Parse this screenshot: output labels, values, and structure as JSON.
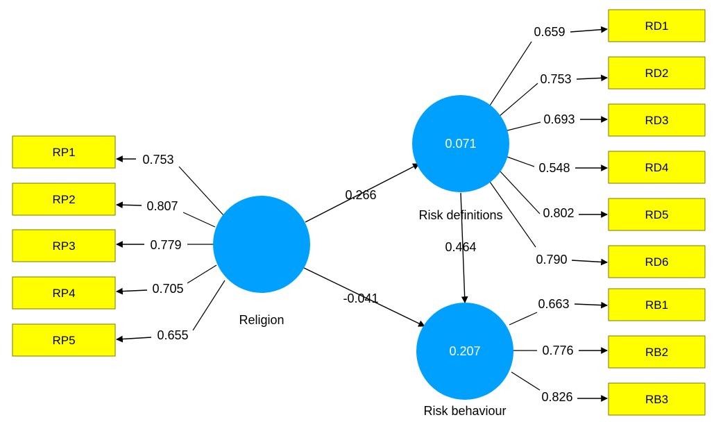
{
  "colors": {
    "latent": "#00A0FF",
    "indicator_fill": "#FFFF00",
    "indicator_border": "#7a7a00",
    "line": "#000000"
  },
  "latents": [
    {
      "id": "religion",
      "label": "Religion",
      "r2": ""
    },
    {
      "id": "risk_def",
      "label": "Risk definitions",
      "r2": "0.071"
    },
    {
      "id": "risk_beh",
      "label": "Risk behaviour",
      "r2": "0.207"
    }
  ],
  "indicators": [
    {
      "id": "RP1",
      "label": "RP1",
      "latent": "religion",
      "weight": "0.753"
    },
    {
      "id": "RP2",
      "label": "RP2",
      "latent": "religion",
      "weight": "0.807"
    },
    {
      "id": "RP3",
      "label": "RP3",
      "latent": "religion",
      "weight": "0.779"
    },
    {
      "id": "RP4",
      "label": "RP4",
      "latent": "religion",
      "weight": "0.705"
    },
    {
      "id": "RP5",
      "label": "RP5",
      "latent": "religion",
      "weight": "0.655"
    },
    {
      "id": "RD1",
      "label": "RD1",
      "latent": "risk_def",
      "weight": "0.659"
    },
    {
      "id": "RD2",
      "label": "RD2",
      "latent": "risk_def",
      "weight": "0.753"
    },
    {
      "id": "RD3",
      "label": "RD3",
      "latent": "risk_def",
      "weight": "0.693"
    },
    {
      "id": "RD4",
      "label": "RD4",
      "latent": "risk_def",
      "weight": "0.548"
    },
    {
      "id": "RD5",
      "label": "RD5",
      "latent": "risk_def",
      "weight": "0.802"
    },
    {
      "id": "RD6",
      "label": "RD6",
      "latent": "risk_def",
      "weight": "0.790"
    },
    {
      "id": "RB1",
      "label": "RB1",
      "latent": "risk_beh",
      "weight": "0.663"
    },
    {
      "id": "RB2",
      "label": "RB2",
      "latent": "risk_beh",
      "weight": "0.776"
    },
    {
      "id": "RB3",
      "label": "RB3",
      "latent": "risk_beh",
      "weight": "0.826"
    }
  ],
  "paths": [
    {
      "from": "religion",
      "to": "risk_def",
      "coef": "0.266"
    },
    {
      "from": "religion",
      "to": "risk_beh",
      "coef": "-0.041"
    },
    {
      "from": "risk_def",
      "to": "risk_beh",
      "coef": "0.464"
    }
  ]
}
